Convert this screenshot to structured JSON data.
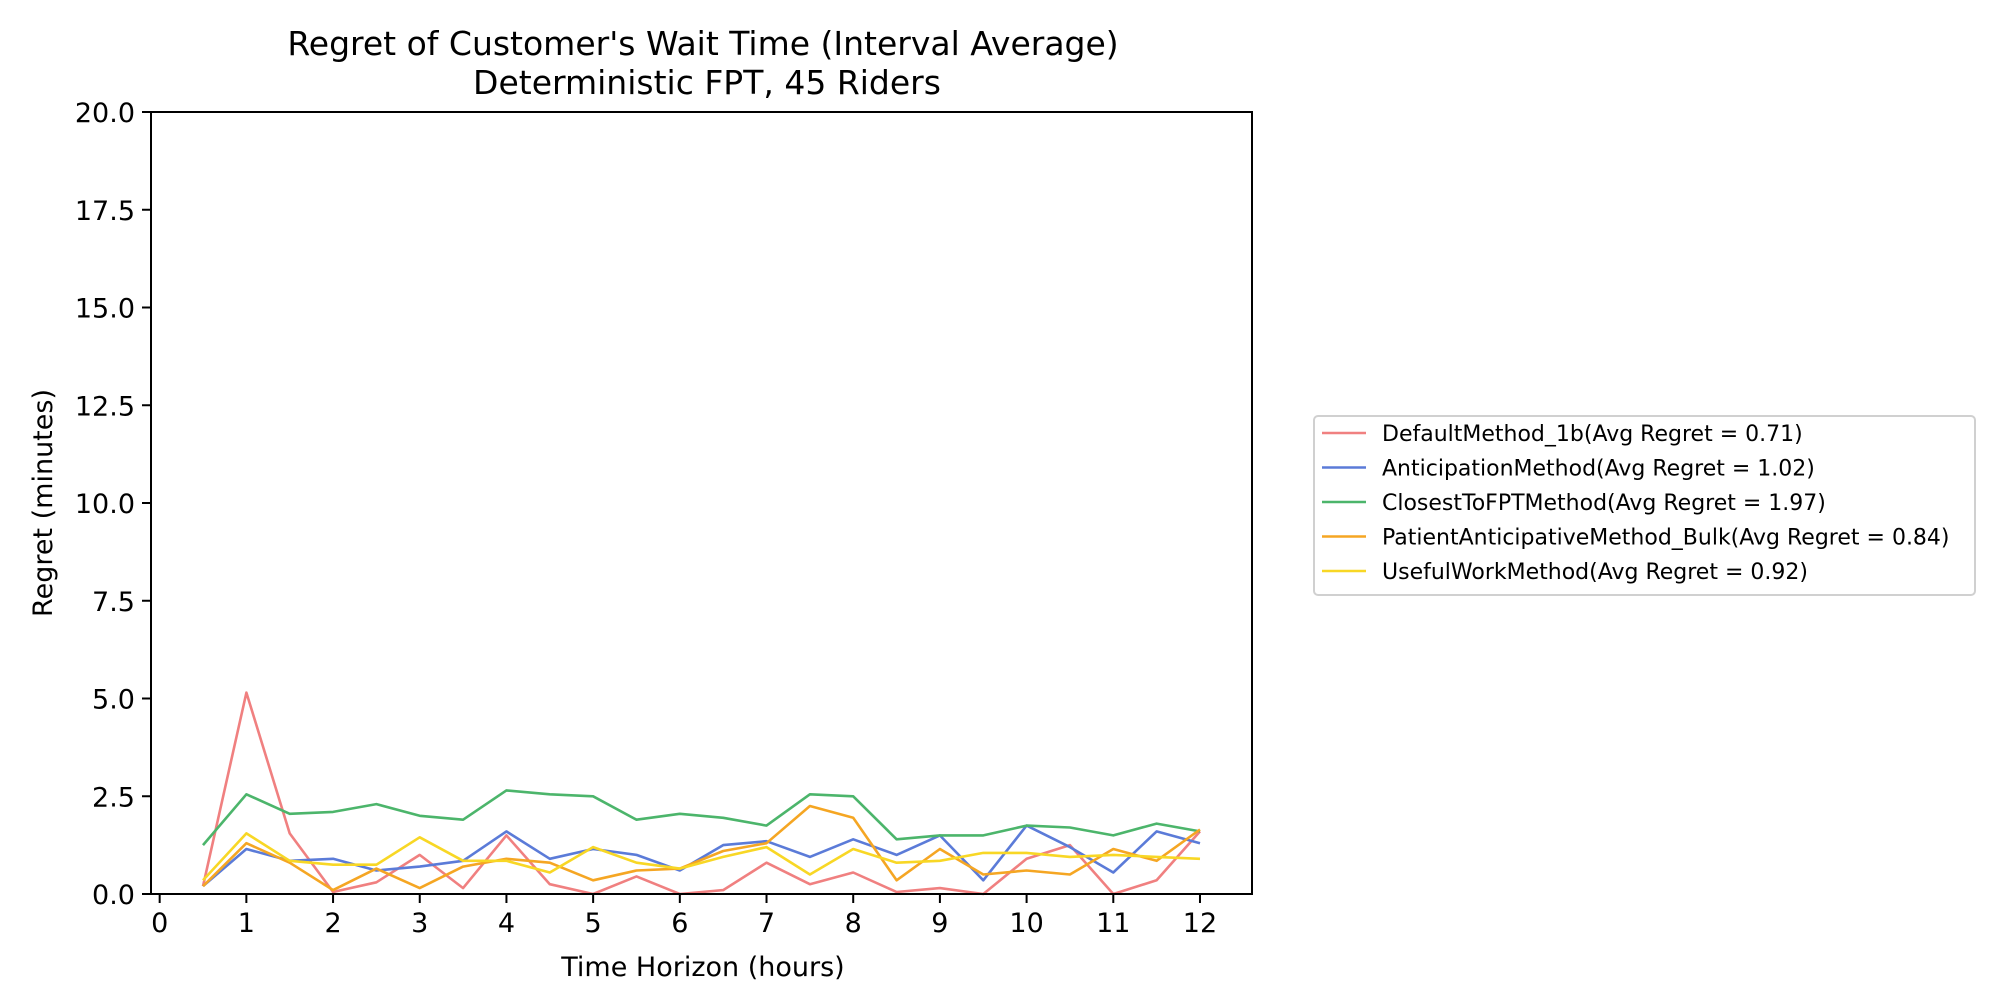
{
  "chart_data": {
    "type": "line",
    "title": "Regret of Customer's Wait Time (Interval Average)",
    "subtitle": "Deterministic FPT, 45 Riders",
    "xlabel": "Time Horizon (hours)",
    "ylabel": "Regret (minutes)",
    "xlim": [
      -0.1,
      12.6
    ],
    "ylim": [
      0,
      20
    ],
    "xticks": [
      0,
      1,
      2,
      3,
      4,
      5,
      6,
      7,
      8,
      9,
      10,
      11,
      12
    ],
    "yticks": [
      0,
      2.5,
      5,
      7.5,
      10,
      12.5,
      15,
      17.5,
      20
    ],
    "xtick_labels": [
      "0",
      "1",
      "2",
      "3",
      "4",
      "5",
      "6",
      "7",
      "8",
      "9",
      "10",
      "11",
      "12"
    ],
    "ytick_labels": [
      "0.0",
      "2.5",
      "5.0",
      "7.5",
      "10.0",
      "12.5",
      "15.0",
      "17.5",
      "20.0"
    ],
    "grid": false,
    "legend_position": "right",
    "x": [
      0.5,
      1,
      1.5,
      2,
      2.5,
      3,
      3.5,
      4,
      4.5,
      5,
      5.5,
      6,
      6.5,
      7,
      7.5,
      8,
      8.5,
      9,
      9.5,
      10,
      10.5,
      11,
      11.5,
      12
    ],
    "series": [
      {
        "name": "DefaultMethod_1b(Avg Regret = 0.71)",
        "color": "#f08080",
        "values": [
          0.2,
          5.15,
          1.55,
          0.05,
          0.3,
          1.0,
          0.15,
          1.5,
          0.25,
          0.0,
          0.45,
          0.0,
          0.1,
          0.8,
          0.25,
          0.55,
          0.05,
          0.15,
          0.0,
          0.9,
          1.25,
          0.0,
          0.35,
          1.6
        ]
      },
      {
        "name": "AnticipationMethod(Avg Regret = 1.02)",
        "color": "#5b7bd8",
        "values": [
          0.2,
          1.15,
          0.85,
          0.9,
          0.6,
          0.7,
          0.85,
          1.6,
          0.9,
          1.15,
          1.0,
          0.6,
          1.25,
          1.35,
          0.95,
          1.4,
          1.0,
          1.5,
          0.35,
          1.75,
          1.2,
          0.55,
          1.6,
          1.3
        ]
      },
      {
        "name": "ClosestToFPTMethod(Avg Regret = 1.97)",
        "color": "#4cb56b",
        "values": [
          1.25,
          2.55,
          2.05,
          2.1,
          2.3,
          2.0,
          1.9,
          2.65,
          2.55,
          2.5,
          1.9,
          2.05,
          1.95,
          1.75,
          2.55,
          2.5,
          1.4,
          1.5,
          1.5,
          1.75,
          1.7,
          1.5,
          1.8,
          1.6
        ]
      },
      {
        "name": "PatientAnticipativeMethod_Bulk(Avg Regret = 0.84)",
        "color": "#f5a623",
        "values": [
          0.2,
          1.3,
          0.8,
          0.1,
          0.65,
          0.15,
          0.7,
          0.9,
          0.8,
          0.35,
          0.6,
          0.65,
          1.1,
          1.3,
          2.25,
          1.95,
          0.35,
          1.15,
          0.5,
          0.6,
          0.5,
          1.15,
          0.85,
          1.65
        ]
      },
      {
        "name": "UsefulWorkMethod(Avg Regret = 0.92)",
        "color": "#f8d725",
        "values": [
          0.35,
          1.55,
          0.85,
          0.75,
          0.75,
          1.45,
          0.85,
          0.85,
          0.55,
          1.2,
          0.8,
          0.65,
          0.95,
          1.2,
          0.5,
          1.15,
          0.8,
          0.85,
          1.05,
          1.05,
          0.95,
          1.0,
          0.95,
          0.9
        ]
      }
    ]
  }
}
